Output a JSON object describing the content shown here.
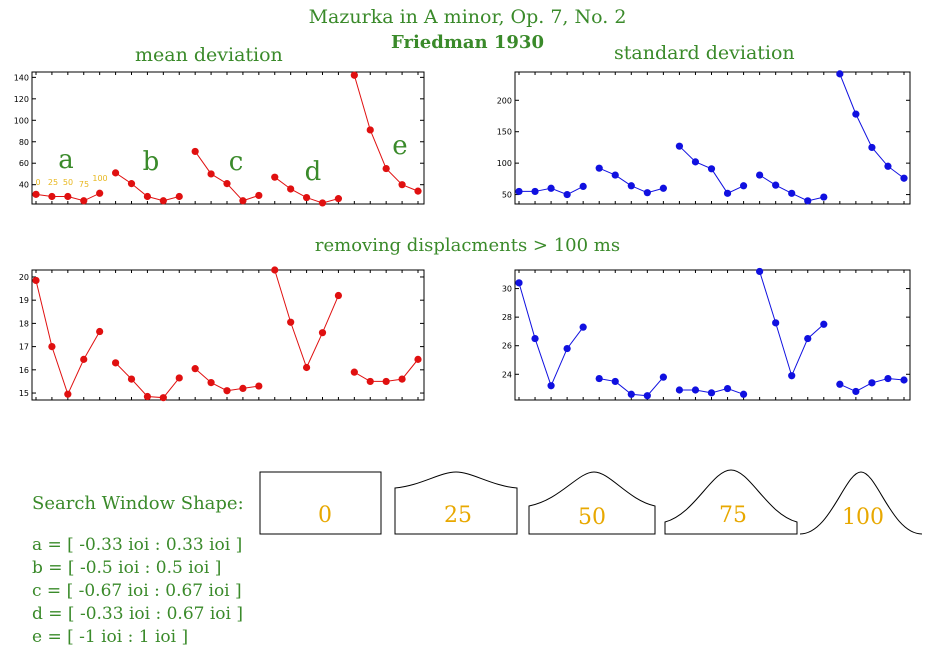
{
  "title": {
    "line1": "Mazurka in A minor, Op. 7, No. 2",
    "line2": "Friedman 1930"
  },
  "section2_title": "removing displacments > 100 ms",
  "colors": {
    "red": "#e01010",
    "blue": "#1010e0",
    "green": "#3a8a2a",
    "gold": "#e8a800"
  },
  "chart_data": [
    {
      "type": "line",
      "title": "mean deviation",
      "ylim": [
        22,
        145
      ],
      "yticks": [
        40,
        60,
        80,
        100,
        120,
        140
      ],
      "color": "red",
      "group_labels": [
        "a",
        "b",
        "c",
        "d",
        "e"
      ],
      "inline_legend": [
        "0",
        "25",
        "50",
        "75",
        "100"
      ],
      "groups": [
        [
          31,
          29,
          29,
          25,
          32
        ],
        [
          51,
          41,
          29,
          25,
          29
        ],
        [
          71,
          50,
          41,
          25,
          30
        ],
        [
          47,
          36,
          28,
          23,
          27
        ],
        [
          142,
          91,
          55,
          40,
          34
        ]
      ]
    },
    {
      "type": "line",
      "title": "standard deviation",
      "ylim": [
        35,
        245
      ],
      "yticks": [
        50,
        100,
        150,
        200
      ],
      "color": "blue",
      "groups": [
        [
          55,
          55,
          60,
          50,
          63
        ],
        [
          92,
          81,
          64,
          53,
          60
        ],
        [
          127,
          102,
          91,
          52,
          64
        ],
        [
          81,
          65,
          52,
          40,
          46
        ],
        [
          242,
          178,
          125,
          95,
          76
        ]
      ]
    },
    {
      "type": "line",
      "title": "",
      "ylim": [
        14.7,
        20.3
      ],
      "yticks": [
        15,
        16,
        17,
        18,
        19,
        20
      ],
      "color": "red",
      "groups": [
        [
          19.85,
          17.0,
          14.95,
          16.45,
          17.65
        ],
        [
          16.3,
          15.6,
          14.85,
          14.8,
          15.65
        ],
        [
          16.05,
          15.45,
          15.1,
          15.2,
          15.3
        ],
        [
          20.3,
          18.05,
          16.1,
          17.6,
          19.2
        ],
        [
          15.9,
          15.5,
          15.5,
          15.6,
          16.45
        ]
      ]
    },
    {
      "type": "line",
      "title": "",
      "ylim": [
        22.2,
        31.3
      ],
      "yticks": [
        24,
        26,
        28,
        30
      ],
      "color": "blue",
      "groups": [
        [
          30.4,
          26.5,
          23.2,
          25.8,
          27.3
        ],
        [
          23.7,
          23.5,
          22.6,
          22.5,
          23.8
        ],
        [
          22.9,
          22.9,
          22.7,
          23.0,
          22.6
        ],
        [
          31.2,
          27.6,
          23.9,
          26.5,
          27.5
        ],
        [
          23.3,
          22.8,
          23.4,
          23.7,
          23.6
        ]
      ]
    }
  ],
  "search_window": {
    "heading": "Search Window Shape:",
    "shapes": [
      "0",
      "25",
      "50",
      "75",
      "100"
    ],
    "ranges": [
      "a = [ -0.33 ioi : 0.33 ioi ]",
      "b = [ -0.5 ioi : 0.5 ioi ]",
      "c = [ -0.67 ioi : 0.67 ioi ]",
      "d = [ -0.33 ioi : 0.67 ioi ]",
      "e = [ -1 ioi : 1 ioi ]"
    ]
  }
}
